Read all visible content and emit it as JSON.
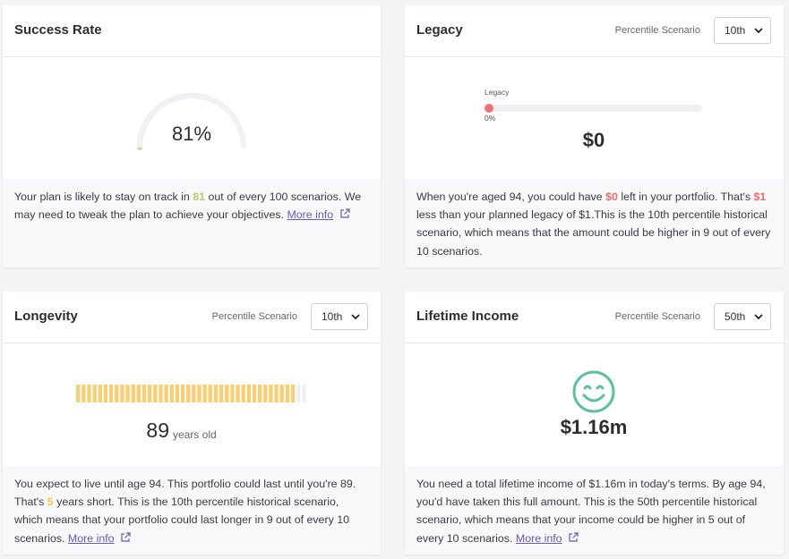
{
  "cards": [
    {
      "title": "Success Rate",
      "gauge": {
        "value": 81,
        "label": "81%"
      },
      "description": [
        "Your plan is likely to stay on track in ",
        "81",
        " out of every 100 scenarios. We may need to tweak the plan to achieve your objectives. "
      ],
      "link": "More info"
    },
    {
      "title": "Legacy",
      "selector_label": "Percentile Scenario",
      "selector_value": "10th",
      "bar": {
        "label": "Legacy",
        "value": 0,
        "value_label": "0%"
      },
      "amount": "$0",
      "description": [
        "When you're aged 94, you could have ",
        "$0",
        " left in your portfolio. That's ",
        "$1",
        " less than your planned legacy of $1.This is the 10th percentile historical scenario, which means that the amount could be higher in 9 out of every 10 scenarios."
      ]
    },
    {
      "title": "Longevity",
      "selector_label": "Percentile Scenario",
      "selector_value": "10th",
      "age": "89",
      "age_unit": "years old",
      "description": [
        "You expect to live until age 94. This portfolio could last until you're 89. That's ",
        "5",
        " years short. This is the 10th percentile historical scenario, which means that your portfolio could last longer in 9 out of every 10 scenarios. "
      ],
      "link": "More info"
    },
    {
      "title": "Lifetime Income",
      "selector_label": "Percentile Scenario",
      "selector_value": "50th",
      "amount": "$1.16m",
      "description": [
        "You need a total lifetime income of $1.16m in today's terms. By age 94, you'd have taken this full amount. This is the 50th percentile historical scenario, which means that your income could be higher in 5 out of every 10 scenarios. "
      ],
      "link": "More info"
    }
  ]
}
